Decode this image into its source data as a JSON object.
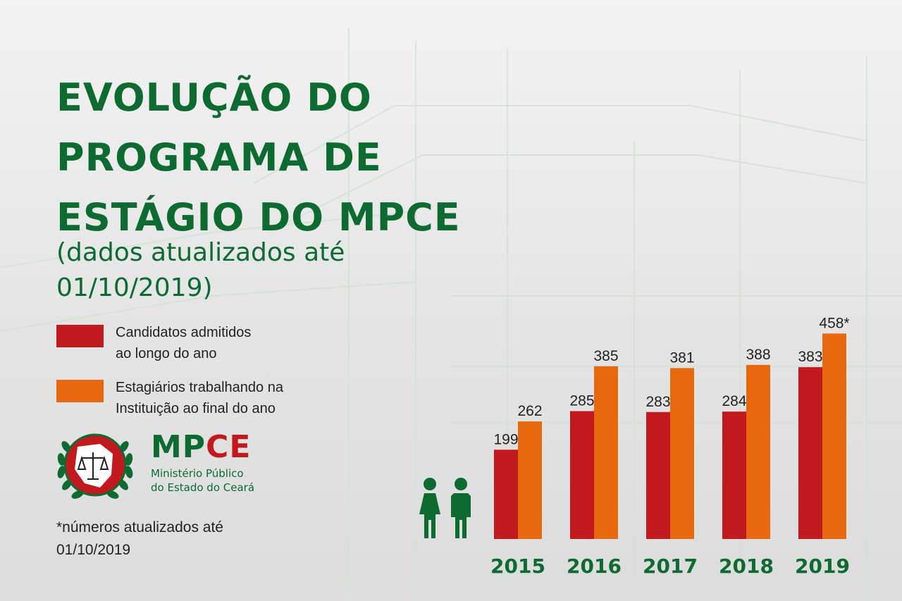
{
  "title": "EVOLUÇÃO DO\nPROGRAMA DE\nESTÁGIO DO MPCE",
  "subtitle": "(dados atualizados até 01/10/2019)",
  "legend": [
    {
      "label_line1": "Candidatos admitidos",
      "label_line2": "ao longo do ano",
      "color": "#c1191d"
    },
    {
      "label_line1": "Estagiários trabalhando na",
      "label_line2": "Instituição ao final do ano",
      "color": "#e8680f"
    }
  ],
  "logo": {
    "brand_part1": "MP",
    "brand_part2": "CE",
    "line1": "Ministério Público",
    "line2": "do Estado do Ceará",
    "green": "#0d6b32",
    "red": "#c1191d"
  },
  "footnote": "*números atualizados até 01/10/2019",
  "icons": {
    "people": "man-woman-icon"
  },
  "chart_data": {
    "type": "bar",
    "categories": [
      "2015",
      "2016",
      "2017",
      "2018",
      "2019"
    ],
    "series": [
      {
        "values": [
          199,
          285,
          283,
          284,
          383
        ],
        "labels": [
          "199",
          "285",
          "283",
          "284",
          "383"
        ],
        "color": "#c1191d"
      },
      {
        "values": [
          262,
          385,
          381,
          388,
          458
        ],
        "labels": [
          "262",
          "385",
          "381",
          "388",
          "458*"
        ],
        "color": "#e8680f"
      }
    ],
    "ylim": [
      0,
      500
    ],
    "grid": false,
    "legend": "left"
  }
}
